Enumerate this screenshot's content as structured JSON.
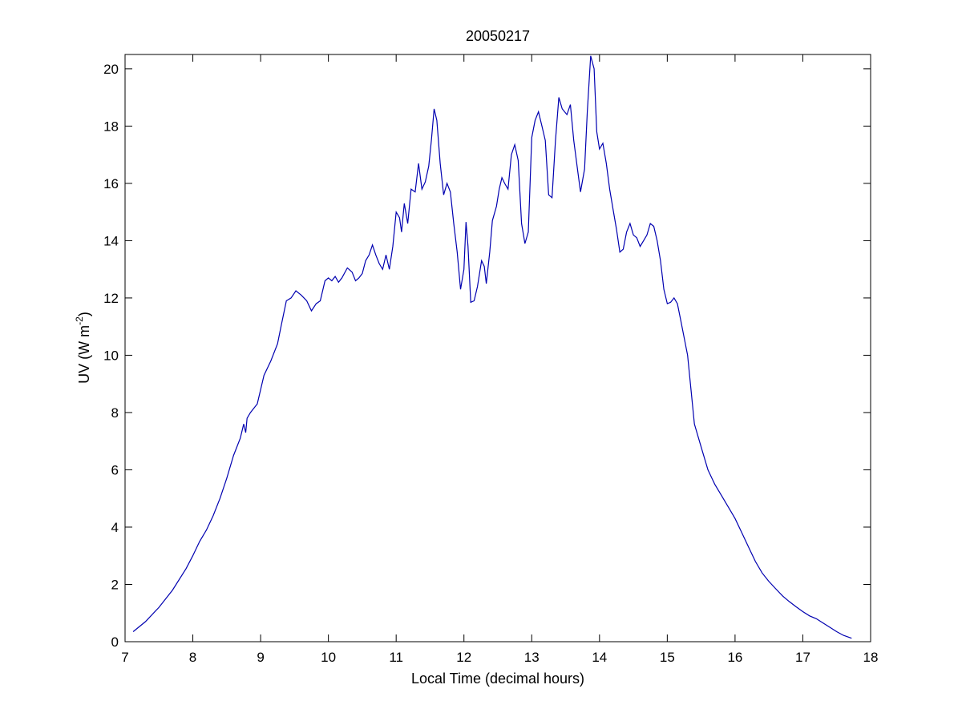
{
  "chart_data": {
    "type": "line",
    "title": "20050217",
    "xlabel": "Local Time (decimal hours)",
    "ylabel": {
      "base": "UV (W m",
      "sup": "-2",
      "close": ")"
    },
    "xlim": [
      7,
      18
    ],
    "ylim": [
      0,
      20.5
    ],
    "xticks": [
      7,
      8,
      9,
      10,
      11,
      12,
      13,
      14,
      15,
      16,
      17,
      18
    ],
    "yticks": [
      0,
      2,
      4,
      6,
      8,
      10,
      12,
      14,
      16,
      18,
      20
    ],
    "grid": false,
    "legend": "none",
    "series": [
      {
        "color": "#0000b0",
        "points": [
          [
            7.12,
            0.35
          ],
          [
            7.3,
            0.7
          ],
          [
            7.5,
            1.2
          ],
          [
            7.7,
            1.8
          ],
          [
            7.9,
            2.55
          ],
          [
            8.0,
            3.0
          ],
          [
            8.1,
            3.5
          ],
          [
            8.2,
            3.9
          ],
          [
            8.3,
            4.4
          ],
          [
            8.4,
            5.0
          ],
          [
            8.5,
            5.7
          ],
          [
            8.6,
            6.5
          ],
          [
            8.7,
            7.1
          ],
          [
            8.75,
            7.6
          ],
          [
            8.78,
            7.3
          ],
          [
            8.8,
            7.8
          ],
          [
            8.85,
            8.0
          ],
          [
            8.95,
            8.3
          ],
          [
            9.05,
            9.3
          ],
          [
            9.15,
            9.8
          ],
          [
            9.25,
            10.4
          ],
          [
            9.3,
            11.0
          ],
          [
            9.38,
            11.9
          ],
          [
            9.45,
            12.0
          ],
          [
            9.52,
            12.25
          ],
          [
            9.6,
            12.1
          ],
          [
            9.68,
            11.9
          ],
          [
            9.75,
            11.55
          ],
          [
            9.82,
            11.8
          ],
          [
            9.88,
            11.9
          ],
          [
            9.95,
            12.6
          ],
          [
            10.0,
            12.7
          ],
          [
            10.05,
            12.6
          ],
          [
            10.1,
            12.75
          ],
          [
            10.15,
            12.55
          ],
          [
            10.2,
            12.7
          ],
          [
            10.28,
            13.05
          ],
          [
            10.35,
            12.9
          ],
          [
            10.4,
            12.6
          ],
          [
            10.45,
            12.7
          ],
          [
            10.5,
            12.85
          ],
          [
            10.55,
            13.3
          ],
          [
            10.6,
            13.5
          ],
          [
            10.65,
            13.85
          ],
          [
            10.7,
            13.5
          ],
          [
            10.75,
            13.2
          ],
          [
            10.8,
            13.0
          ],
          [
            10.85,
            13.5
          ],
          [
            10.9,
            13.0
          ],
          [
            10.95,
            13.8
          ],
          [
            11.0,
            15.0
          ],
          [
            11.05,
            14.8
          ],
          [
            11.08,
            14.3
          ],
          [
            11.12,
            15.3
          ],
          [
            11.17,
            14.6
          ],
          [
            11.22,
            15.8
          ],
          [
            11.28,
            15.7
          ],
          [
            11.33,
            16.7
          ],
          [
            11.38,
            15.8
          ],
          [
            11.43,
            16.05
          ],
          [
            11.48,
            16.6
          ],
          [
            11.52,
            17.5
          ],
          [
            11.56,
            18.6
          ],
          [
            11.6,
            18.2
          ],
          [
            11.65,
            16.7
          ],
          [
            11.7,
            15.6
          ],
          [
            11.75,
            16.0
          ],
          [
            11.8,
            15.7
          ],
          [
            11.85,
            14.6
          ],
          [
            11.9,
            13.6
          ],
          [
            11.95,
            12.3
          ],
          [
            12.0,
            13.0
          ],
          [
            12.03,
            14.65
          ],
          [
            12.06,
            13.8
          ],
          [
            12.1,
            11.85
          ],
          [
            12.15,
            11.9
          ],
          [
            12.2,
            12.4
          ],
          [
            12.26,
            13.3
          ],
          [
            12.3,
            13.1
          ],
          [
            12.33,
            12.5
          ],
          [
            12.38,
            13.6
          ],
          [
            12.42,
            14.7
          ],
          [
            12.48,
            15.2
          ],
          [
            12.52,
            15.8
          ],
          [
            12.56,
            16.2
          ],
          [
            12.6,
            16.0
          ],
          [
            12.65,
            15.8
          ],
          [
            12.7,
            17.0
          ],
          [
            12.75,
            17.35
          ],
          [
            12.8,
            16.8
          ],
          [
            12.85,
            14.6
          ],
          [
            12.9,
            13.9
          ],
          [
            12.95,
            14.3
          ],
          [
            13.0,
            17.6
          ],
          [
            13.05,
            18.2
          ],
          [
            13.1,
            18.5
          ],
          [
            13.15,
            18.0
          ],
          [
            13.2,
            17.5
          ],
          [
            13.25,
            15.6
          ],
          [
            13.3,
            15.5
          ],
          [
            13.35,
            17.5
          ],
          [
            13.4,
            19.0
          ],
          [
            13.45,
            18.6
          ],
          [
            13.52,
            18.4
          ],
          [
            13.57,
            18.75
          ],
          [
            13.62,
            17.5
          ],
          [
            13.68,
            16.4
          ],
          [
            13.72,
            15.7
          ],
          [
            13.78,
            16.5
          ],
          [
            13.82,
            18.5
          ],
          [
            13.87,
            20.45
          ],
          [
            13.92,
            20.0
          ],
          [
            13.96,
            17.8
          ],
          [
            14.0,
            17.2
          ],
          [
            14.05,
            17.4
          ],
          [
            14.1,
            16.7
          ],
          [
            14.15,
            15.8
          ],
          [
            14.2,
            15.1
          ],
          [
            14.25,
            14.4
          ],
          [
            14.3,
            13.6
          ],
          [
            14.35,
            13.7
          ],
          [
            14.4,
            14.3
          ],
          [
            14.45,
            14.6
          ],
          [
            14.5,
            14.2
          ],
          [
            14.55,
            14.1
          ],
          [
            14.6,
            13.8
          ],
          [
            14.65,
            14.0
          ],
          [
            14.7,
            14.2
          ],
          [
            14.75,
            14.6
          ],
          [
            14.8,
            14.5
          ],
          [
            14.85,
            14.0
          ],
          [
            14.9,
            13.3
          ],
          [
            14.95,
            12.3
          ],
          [
            15.0,
            11.8
          ],
          [
            15.05,
            11.85
          ],
          [
            15.1,
            12.0
          ],
          [
            15.15,
            11.8
          ],
          [
            15.2,
            11.2
          ],
          [
            15.3,
            10.0
          ],
          [
            15.4,
            7.6
          ],
          [
            15.5,
            6.8
          ],
          [
            15.6,
            6.0
          ],
          [
            15.7,
            5.5
          ],
          [
            15.8,
            5.1
          ],
          [
            15.9,
            4.7
          ],
          [
            16.0,
            4.3
          ],
          [
            16.1,
            3.8
          ],
          [
            16.2,
            3.3
          ],
          [
            16.3,
            2.8
          ],
          [
            16.4,
            2.4
          ],
          [
            16.5,
            2.1
          ],
          [
            16.6,
            1.85
          ],
          [
            16.7,
            1.6
          ],
          [
            16.8,
            1.4
          ],
          [
            16.9,
            1.22
          ],
          [
            17.0,
            1.05
          ],
          [
            17.1,
            0.9
          ],
          [
            17.2,
            0.8
          ],
          [
            17.3,
            0.65
          ],
          [
            17.4,
            0.5
          ],
          [
            17.5,
            0.35
          ],
          [
            17.6,
            0.22
          ],
          [
            17.72,
            0.12
          ]
        ]
      }
    ]
  }
}
